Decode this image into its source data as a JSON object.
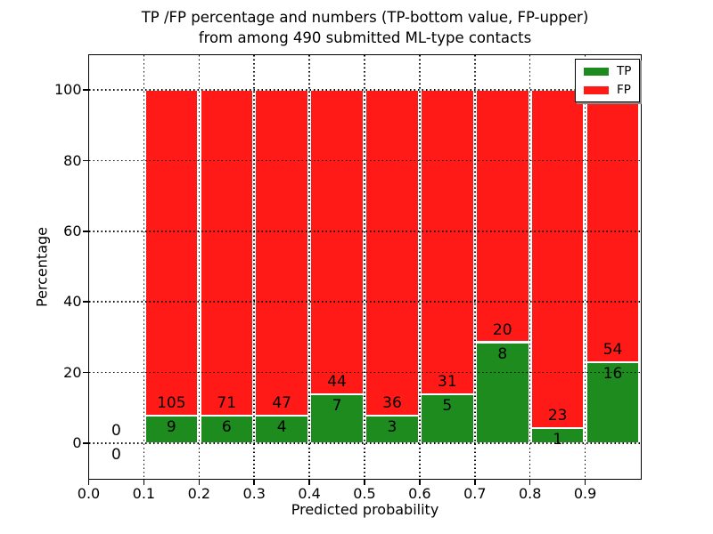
{
  "figure": {
    "kind": "matplotlib-style stacked bar chart"
  },
  "chart_data": {
    "type": "bar",
    "stacked": true,
    "title_lines": [
      "TP /FP percentage and numbers (TP-bottom value, FP-upper)",
      "from among 490 submitted ML-type contacts"
    ],
    "xlabel": "Predicted probability",
    "ylabel": "Percentage",
    "xlim": [
      0.0,
      1.0
    ],
    "ylim": [
      -10,
      110
    ],
    "bin_width": 0.1,
    "total_contacts": 490,
    "x_tick_labels": [
      "0.0",
      "0.1",
      "0.2",
      "0.3",
      "0.4",
      "0.5",
      "0.6",
      "0.7",
      "0.8",
      "0.9"
    ],
    "x_tick_values": [
      0.0,
      0.1,
      0.2,
      0.3,
      0.4,
      0.5,
      0.6,
      0.7,
      0.8,
      0.9
    ],
    "y_tick_values": [
      0,
      20,
      40,
      60,
      80,
      100
    ],
    "grid": {
      "visible": true,
      "style": "dotted",
      "color": "#000000",
      "on_top": true
    },
    "categories": [
      "0.0-0.1",
      "0.1-0.2",
      "0.2-0.3",
      "0.3-0.4",
      "0.4-0.5",
      "0.5-0.6",
      "0.6-0.7",
      "0.7-0.8",
      "0.8-0.9",
      "0.9-1.0"
    ],
    "series": [
      {
        "name": "TP",
        "color": "#1e8b1e",
        "values": [
          0,
          9,
          6,
          4,
          7,
          3,
          5,
          8,
          1,
          16
        ]
      },
      {
        "name": "FP",
        "color": "#ff1a17",
        "values": [
          0,
          105,
          71,
          47,
          44,
          36,
          31,
          20,
          23,
          54
        ]
      }
    ],
    "tp_percentages": [
      0,
      7.89,
      7.79,
      7.84,
      13.73,
      7.69,
      13.89,
      28.57,
      4.17,
      22.86
    ],
    "bar_total_percent": 100,
    "legend": {
      "position": "upper right",
      "entries": [
        "TP",
        "FP"
      ]
    }
  }
}
